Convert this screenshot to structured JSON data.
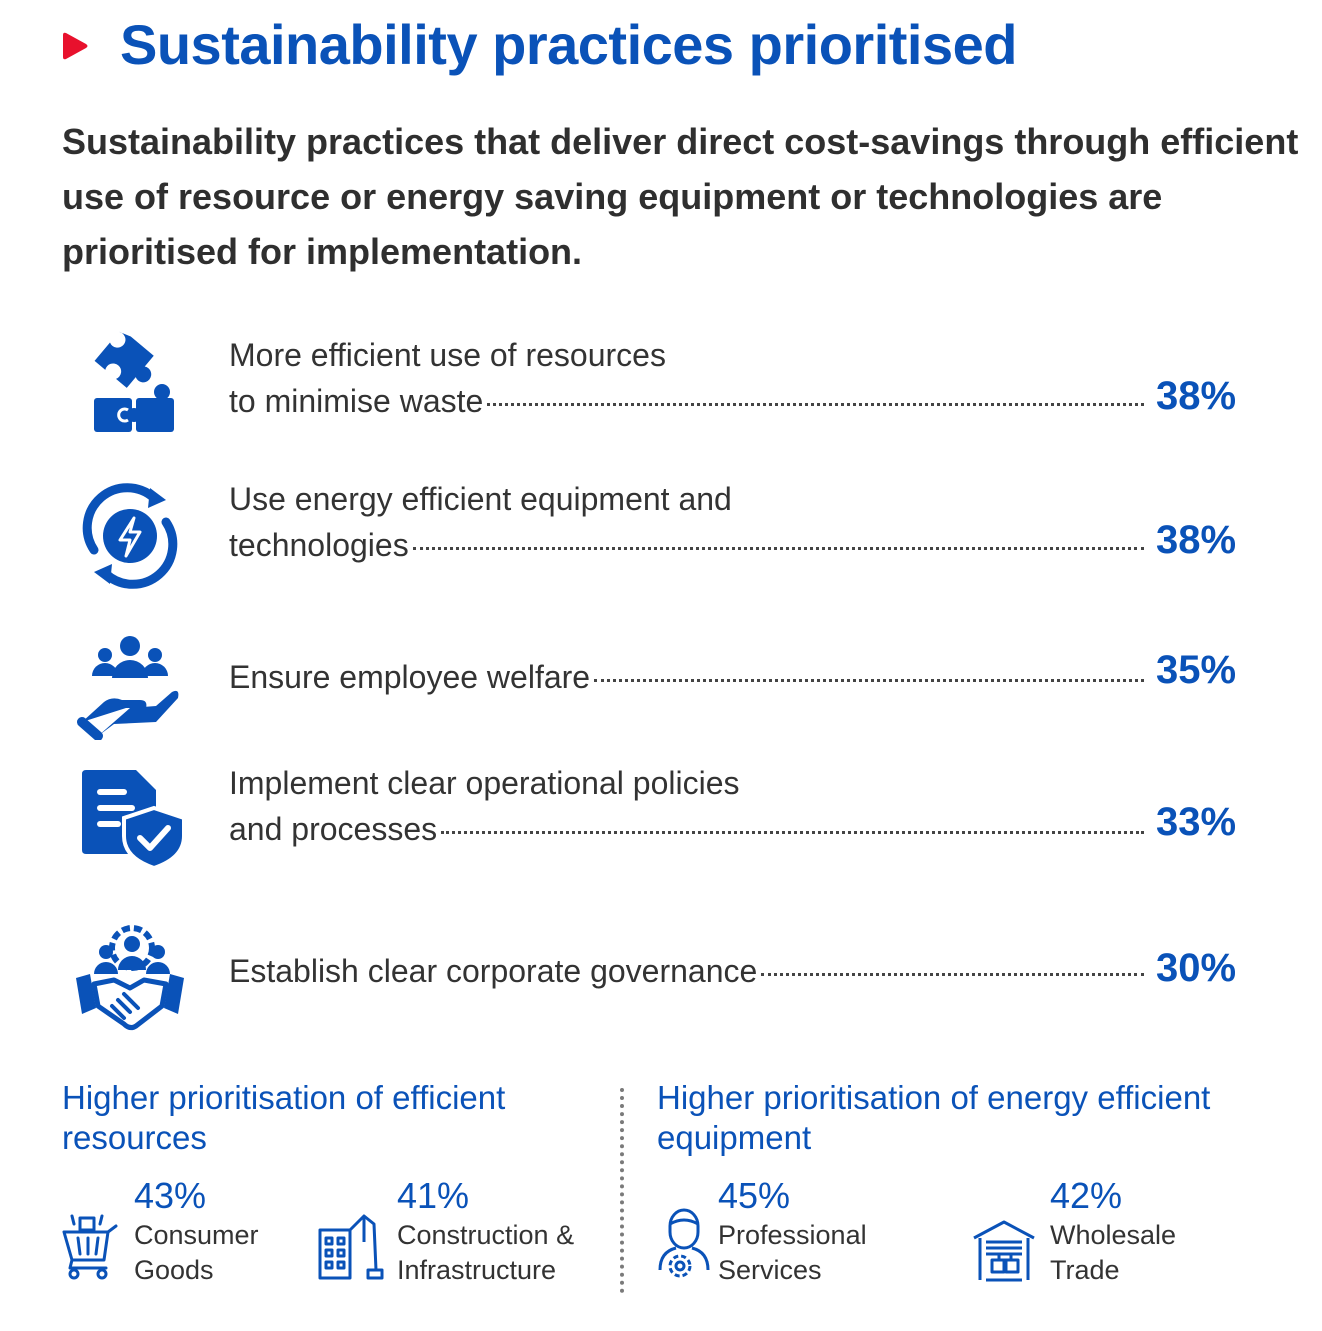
{
  "header": {
    "title": "Sustainability practices prioritised",
    "lead": "Sustainability practices that deliver direct cost-savings through efficient use of resource or energy saving equipment or technologies are prioritised for implementation."
  },
  "practices": [
    {
      "icon": "puzzle-icon",
      "line1": "More efficient use of resources",
      "line2": "to minimise waste",
      "value": "38%"
    },
    {
      "icon": "energy-cycle-icon",
      "line1": "Use energy efficient equipment and",
      "line2": "technologies",
      "value": "38%"
    },
    {
      "icon": "employee-care-icon",
      "line1": "",
      "line2": "Ensure employee welfare",
      "value": "35%"
    },
    {
      "icon": "policy-shield-icon",
      "line1": "Implement clear operational policies",
      "line2": "and processes",
      "value": "33%"
    },
    {
      "icon": "governance-handshake-icon",
      "line1": "",
      "line2": "Establish clear corporate governance",
      "value": "30%"
    }
  ],
  "efficient_resources": {
    "title_line1": "Higher prioritisation of efficient",
    "title_line2": "resources",
    "stats": [
      {
        "icon": "shopping-cart-icon",
        "value": "43%",
        "label1": "Consumer",
        "label2": "Goods"
      },
      {
        "icon": "construction-icon",
        "value": "41%",
        "label1": "Construction &",
        "label2": "Infrastructure"
      }
    ]
  },
  "energy_equipment": {
    "title_line1": "Higher prioritisation of energy efficient",
    "title_line2": "equipment",
    "stats": [
      {
        "icon": "professional-gear-icon",
        "value": "45%",
        "label1": "Professional",
        "label2": "Services"
      },
      {
        "icon": "warehouse-icon",
        "value": "42%",
        "label1": "Wholesale",
        "label2": "Trade"
      }
    ]
  },
  "colors": {
    "accent": "#0a52b8",
    "bullet": "#e8112d",
    "text": "#333333"
  }
}
